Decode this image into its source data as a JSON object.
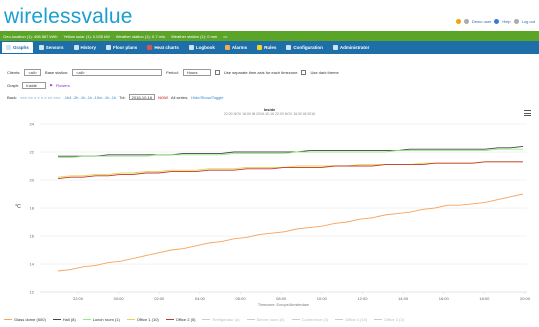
{
  "header": {
    "logo": "wirelessvalue",
    "links": [
      "Demo user",
      "Help",
      "Log out"
    ]
  },
  "statusbar": {
    "items": [
      "Geo-location (1): 408.587 kWh",
      "Yellow solar (1): 0.035 kW",
      "Weather station (1): 0.7 m/s",
      "Weather station (1): 0 mm"
    ],
    "more": "•••"
  },
  "navbar": {
    "items": [
      {
        "label": "Graphs",
        "icon": "chart-icon",
        "active": true
      },
      {
        "label": "Sensors",
        "icon": "sensor-icon"
      },
      {
        "label": "History",
        "icon": "history-icon"
      },
      {
        "label": "Floor plans",
        "icon": "floorplan-icon"
      },
      {
        "label": "Heat charts",
        "icon": "heatchart-icon"
      },
      {
        "label": "Logbook",
        "icon": "logbook-icon"
      },
      {
        "label": "Alarms",
        "icon": "alarm-icon"
      },
      {
        "label": "Rules",
        "icon": "rules-icon"
      },
      {
        "label": "Configuration",
        "icon": "config-icon"
      },
      {
        "label": "Administrator",
        "icon": "admin-icon"
      }
    ]
  },
  "filters": {
    "client_label": "Clients:",
    "client_value": "<all>",
    "station_label": "Base station:",
    "station_value": "<all>",
    "period_label": "Period:",
    "period_value": "Hours",
    "option1": "Use separate time axis for each timezone",
    "option2": "Use dark theme"
  },
  "graph": {
    "label": "Graph:",
    "value": "Inside",
    "flag": "Flowers"
  },
  "time_nav": {
    "label": "Back:",
    "steps": "<<< << < < < > >> >>>",
    "ranges": "-1h4 -2h -1h -1h -10m -1h -1h",
    "to_label": "Tot:",
    "to_value": "2016-10-16",
    "now": "NOW",
    "all_series": "All series:",
    "toggles": "Hide/Show/Toggle"
  },
  "chart_data": {
    "type": "line",
    "title": "Inside",
    "subtitle": "22:00 NOV 16:00 till 2016-10-16 22:00 NOV 16:00 till 2016",
    "ylabel": "°C",
    "xlabel": "Timezone: Europe/Amsterdam",
    "ylim": [
      12,
      24
    ],
    "yticks": [
      12,
      14,
      16,
      18,
      20,
      22,
      24
    ],
    "xticks": [
      "22:00",
      "00:00",
      "02:00",
      "04:00",
      "06:00",
      "08:00",
      "10:00",
      "12:00",
      "14:00",
      "16:00",
      "18:00",
      "20:00"
    ],
    "series": [
      {
        "name": "Glass dome (500)",
        "color": "#f7a35c",
        "visible": true,
        "values": [
          13.5,
          13.6,
          13.8,
          13.9,
          14.1,
          14.2,
          14.4,
          14.6,
          14.8,
          15.0,
          15.1,
          15.3,
          15.5,
          15.6,
          15.8,
          15.9,
          16.1,
          16.2,
          16.3,
          16.5,
          16.6,
          16.7,
          16.9,
          17.0,
          17.2,
          17.3,
          17.5,
          17.6,
          17.7,
          17.9,
          18.0,
          18.2,
          18.2,
          18.3,
          18.4,
          18.6,
          18.8,
          19.0
        ]
      },
      {
        "name": "Hall (8)",
        "color": "#434348",
        "visible": true,
        "values": [
          21.7,
          21.7,
          21.7,
          21.7,
          21.8,
          21.8,
          21.8,
          21.8,
          21.8,
          21.8,
          21.9,
          21.9,
          21.9,
          21.9,
          22.0,
          22.0,
          22.0,
          22.0,
          22.0,
          22.0,
          22.1,
          22.1,
          22.1,
          22.1,
          22.1,
          22.1,
          22.1,
          22.1,
          22.2,
          22.2,
          22.2,
          22.2,
          22.2,
          22.2,
          22.2,
          22.3,
          22.3,
          22.4
        ]
      },
      {
        "name": "Lunch room (1)",
        "color": "#90ed7d",
        "visible": true,
        "values": [
          21.6,
          21.6,
          21.7,
          21.7,
          21.7,
          21.7,
          21.7,
          21.7,
          21.8,
          21.8,
          21.8,
          21.8,
          21.8,
          21.8,
          21.9,
          21.9,
          21.9,
          21.9,
          21.9,
          22.0,
          22.0,
          22.0,
          22.0,
          22.0,
          22.0,
          22.0,
          22.0,
          22.1,
          22.1,
          22.1,
          22.1,
          22.1,
          22.1,
          22.1,
          22.1,
          22.2,
          22.2,
          22.2
        ]
      },
      {
        "name": "Office 1 (10)",
        "color": "#e4d354",
        "visible": true,
        "values": [
          20.2,
          20.3,
          20.3,
          20.4,
          20.4,
          20.5,
          20.5,
          20.6,
          20.6,
          20.7,
          20.7,
          20.7,
          20.8,
          20.8,
          20.8,
          20.9,
          20.9,
          20.9,
          20.9,
          21.0,
          21.0,
          21.0,
          21.0,
          21.0,
          21.1,
          21.1,
          21.1,
          21.1,
          21.1,
          21.2,
          21.2,
          21.2,
          21.2,
          21.2,
          21.3,
          21.3,
          21.3,
          21.3
        ]
      },
      {
        "name": "Office 2 (5)",
        "color": "#c0392b",
        "visible": true,
        "values": [
          20.1,
          20.2,
          20.2,
          20.3,
          20.3,
          20.4,
          20.4,
          20.5,
          20.5,
          20.6,
          20.6,
          20.6,
          20.7,
          20.7,
          20.7,
          20.8,
          20.8,
          20.8,
          20.9,
          20.9,
          20.9,
          20.9,
          21.0,
          21.0,
          21.0,
          21.0,
          21.1,
          21.1,
          21.1,
          21.1,
          21.2,
          21.2,
          21.2,
          21.2,
          21.3,
          21.3,
          21.3,
          21.3
        ]
      }
    ],
    "hidden_series": [
      "Refrigerator (4)",
      "Server room (4)",
      "Conference (3)",
      "Office 4 (10)",
      "Office 3 (3)"
    ]
  }
}
